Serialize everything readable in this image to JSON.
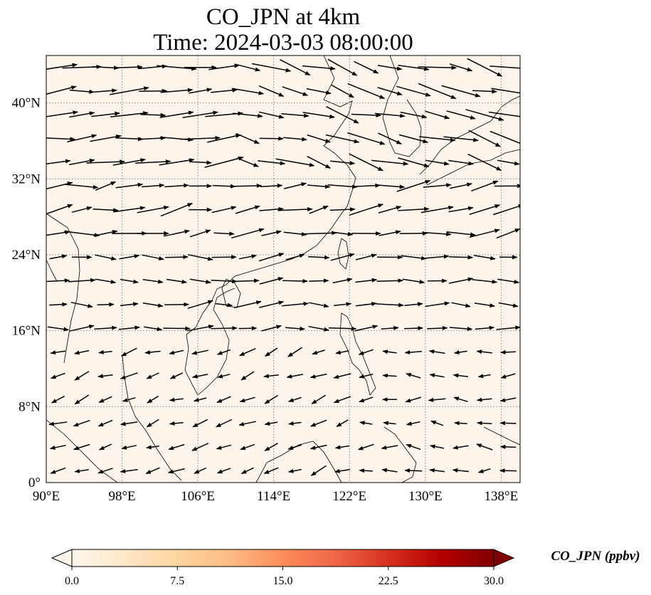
{
  "title": {
    "line1": "CO_JPN at 4km",
    "line2": "Time: 2024-03-03 08:00:00"
  },
  "map": {
    "projection": "PlateCarree",
    "extent": {
      "lon": [
        90,
        140
      ],
      "lat": [
        0,
        45
      ]
    },
    "background_color": "#fdf5ea",
    "field_value_ppbv": 0.0,
    "gridlines": "dotted"
  },
  "axes": {
    "x_ticks": [
      {
        "value": 90,
        "label": "90°E"
      },
      {
        "value": 98,
        "label": "98°E"
      },
      {
        "value": 106,
        "label": "106°E"
      },
      {
        "value": 114,
        "label": "114°E"
      },
      {
        "value": 122,
        "label": "122°E"
      },
      {
        "value": 130,
        "label": "130°E"
      },
      {
        "value": 138,
        "label": "138°E"
      }
    ],
    "y_ticks": [
      {
        "value": 0,
        "label": "0°"
      },
      {
        "value": 8,
        "label": "8°N"
      },
      {
        "value": 16,
        "label": "16°N"
      },
      {
        "value": 24,
        "label": "24°N"
      },
      {
        "value": 32,
        "label": "32°N"
      },
      {
        "value": 40,
        "label": "40°N"
      }
    ]
  },
  "colorbar": {
    "label": "CO_JPN (ppbv)",
    "min": 0.0,
    "max": 30.0,
    "extend": "both",
    "colormap": "OrRd",
    "colors": [
      "#fff7ec",
      "#fee8c8",
      "#fdd49e",
      "#fdbb84",
      "#fc8d59",
      "#ef6548",
      "#d7301f",
      "#b30000",
      "#7f0000"
    ],
    "ticks": [
      {
        "value": 0.0,
        "label": "0.0"
      },
      {
        "value": 7.5,
        "label": "7.5"
      },
      {
        "value": 15.0,
        "label": "15.0"
      },
      {
        "value": 22.5,
        "label": "22.5"
      },
      {
        "value": 30.0,
        "label": "30.0"
      }
    ]
  },
  "wind_vectors": {
    "description": "quiver arrows on 2.5 degree grid",
    "regions": [
      {
        "name": "north",
        "lat_min": 33,
        "lat_max": 45,
        "direction_deg": -15,
        "speed": 1.0
      },
      {
        "name": "mid",
        "lat_min": 24,
        "lat_max": 33,
        "direction_deg": 8,
        "speed": 0.85
      },
      {
        "name": "subtropic",
        "lat_min": 16,
        "lat_max": 24,
        "direction_deg": 3,
        "speed": 0.6
      },
      {
        "name": "tropic",
        "lat_min": 0,
        "lat_max": 16,
        "direction_deg": 200,
        "speed": 0.3
      }
    ]
  }
}
